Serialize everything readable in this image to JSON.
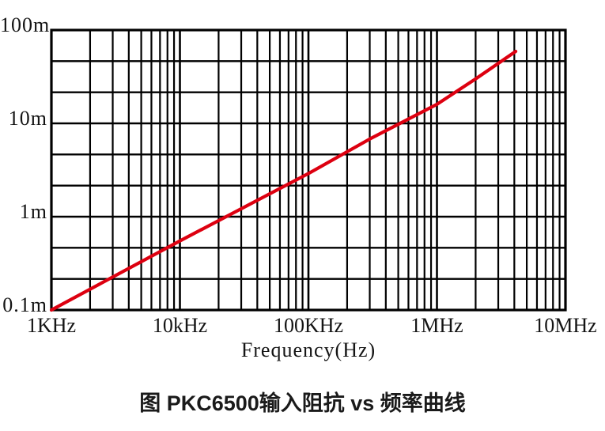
{
  "figure": {
    "caption": "图 PKC6500输入阻抗 vs 频率曲线"
  },
  "chart_data": {
    "type": "line",
    "title": "",
    "xlabel": "Frequency(Hz)",
    "ylabel": "",
    "x_scale": "log",
    "y_scale": "log",
    "x_range_hz": [
      1000,
      10000000
    ],
    "y_range_m": [
      0.1,
      100
    ],
    "x_ticks": [
      {
        "label": "1KHz",
        "hz": 1000
      },
      {
        "label": "10kHz",
        "hz": 10000
      },
      {
        "label": "100KHz",
        "hz": 100000
      },
      {
        "label": "1MHz",
        "hz": 1000000
      },
      {
        "label": "10MHz",
        "hz": 10000000
      }
    ],
    "y_ticks": [
      {
        "label": "100m",
        "value_m": 100
      },
      {
        "label": "10m",
        "value_m": 10
      },
      {
        "label": "1m",
        "value_m": 1
      },
      {
        "label": "0.1m",
        "value_m": 0.1
      }
    ],
    "grid": {
      "show": true,
      "color": "#000000",
      "x_minors": "log-positions-2-to-9-per-decade",
      "y_minors": "three-equal-divisions-per-decade"
    },
    "legend": "none",
    "series": [
      {
        "name": "PKC6500 input impedance",
        "color": "#dd0010",
        "points": [
          {
            "hz": 1000,
            "impedance_m": 0.1
          },
          {
            "hz": 10000,
            "impedance_m": 0.55
          },
          {
            "hz": 100000,
            "impedance_m": 2.9
          },
          {
            "hz": 300000,
            "impedance_m": 6.8
          },
          {
            "hz": 1000000,
            "impedance_m": 16
          },
          {
            "hz": 2000000,
            "impedance_m": 30
          },
          {
            "hz": 4100000,
            "impedance_m": 59
          }
        ]
      }
    ]
  }
}
